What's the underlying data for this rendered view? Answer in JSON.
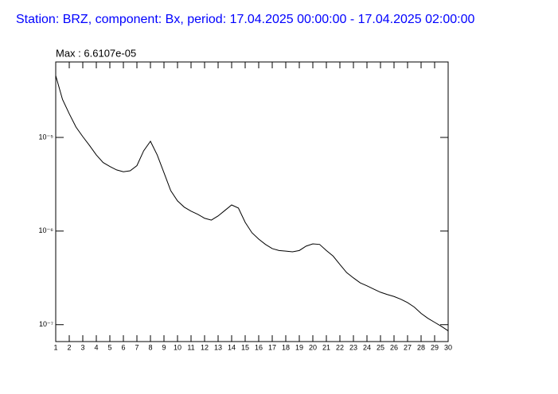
{
  "chart_data": {
    "type": "line",
    "title": "Station: BRZ, component: Bx, period: 17.04.2025 00:00:00 - 17.04.2025 02:00:00",
    "annotation": "Max : 6.6107e-05",
    "log_y": true,
    "xlim": [
      1,
      30
    ],
    "xticks": [
      1,
      2,
      3,
      4,
      5,
      6,
      7,
      8,
      9,
      10,
      11,
      12,
      13,
      14,
      15,
      16,
      17,
      18,
      19,
      20,
      21,
      22,
      23,
      24,
      25,
      26,
      27,
      28,
      29,
      30
    ],
    "ylim": [
      6.6e-08,
      6.4e-05
    ],
    "yticks": [
      {
        "value": 1e-05,
        "label": "10⁻⁵"
      },
      {
        "value": 1e-06,
        "label": "10⁻⁶"
      },
      {
        "value": 1e-07,
        "label": "10⁻⁷"
      }
    ],
    "x": [
      1,
      1.5,
      2,
      2.5,
      3,
      3.5,
      4,
      4.5,
      5,
      5.5,
      6,
      6.5,
      7,
      7.5,
      8,
      8.5,
      9,
      9.5,
      10,
      10.5,
      11,
      11.5,
      12,
      12.5,
      13,
      13.5,
      14,
      14.5,
      15,
      15.5,
      16,
      16.5,
      17,
      17.5,
      18,
      18.5,
      19,
      19.5,
      20,
      20.5,
      21,
      21.5,
      22,
      22.5,
      23,
      23.5,
      24,
      24.5,
      25,
      25.5,
      26,
      26.5,
      27,
      27.5,
      28,
      28.5,
      29,
      29.5,
      30
    ],
    "series": [
      {
        "color": "#000000",
        "values": [
          4.58e-05,
          2.55e-05,
          1.79e-05,
          1.29e-05,
          1.02e-05,
          8.2e-06,
          6.5e-06,
          5.4e-06,
          4.9e-06,
          4.5e-06,
          4.3e-06,
          4.4e-06,
          5e-06,
          7.2e-06,
          9.1e-06,
          6.5e-06,
          4.2e-06,
          2.7e-06,
          2.1e-06,
          1.8e-06,
          1.63e-06,
          1.51e-06,
          1.37e-06,
          1.31e-06,
          1.45e-06,
          1.66e-06,
          1.9e-06,
          1.76e-06,
          1.24e-06,
          9.6e-07,
          8.2e-07,
          7.2e-07,
          6.5e-07,
          6.2e-07,
          6.1e-07,
          6e-07,
          6.2e-07,
          6.9e-07,
          7.3e-07,
          7.2e-07,
          6.2e-07,
          5.4e-07,
          4.4e-07,
          3.6e-07,
          3.16e-07,
          2.8e-07,
          2.6e-07,
          2.4e-07,
          2.22e-07,
          2.1e-07,
          2e-07,
          1.87e-07,
          1.72e-07,
          1.54e-07,
          1.32e-07,
          1.17e-07,
          1.06e-07,
          9.6e-08,
          8.6e-08
        ]
      }
    ]
  }
}
